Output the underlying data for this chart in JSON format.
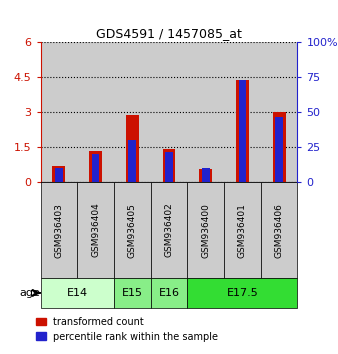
{
  "title": "GDS4591 / 1457085_at",
  "samples": [
    "GSM936403",
    "GSM936404",
    "GSM936405",
    "GSM936402",
    "GSM936400",
    "GSM936401",
    "GSM936406"
  ],
  "transformed_count": [
    0.72,
    1.35,
    2.88,
    1.45,
    0.58,
    4.38,
    3.02
  ],
  "percentile_rank_pct": [
    10,
    20,
    30,
    22,
    10,
    73,
    47
  ],
  "age_groups": [
    {
      "label": "E14",
      "cols": [
        0,
        1
      ],
      "color": "#ccffcc"
    },
    {
      "label": "E15",
      "cols": [
        2
      ],
      "color": "#88ee88"
    },
    {
      "label": "E16",
      "cols": [
        3
      ],
      "color": "#88ee88"
    },
    {
      "label": "E17.5",
      "cols": [
        4,
        5,
        6
      ],
      "color": "#33dd33"
    }
  ],
  "bar_color_red": "#cc1100",
  "bar_color_blue": "#2222cc",
  "ylim_left": [
    0,
    6
  ],
  "ylim_right": [
    0,
    100
  ],
  "yticks_left": [
    0,
    1.5,
    3.0,
    4.5,
    6.0
  ],
  "ytick_labels_left": [
    "0",
    "1.5",
    "3",
    "4.5",
    "6"
  ],
  "yticks_right": [
    0,
    25,
    50,
    75,
    100
  ],
  "ytick_labels_right": [
    "0",
    "25",
    "50",
    "75",
    "100%"
  ],
  "bg_color": "#ffffff",
  "sample_bg": "#cccccc",
  "bar_width": 0.35
}
